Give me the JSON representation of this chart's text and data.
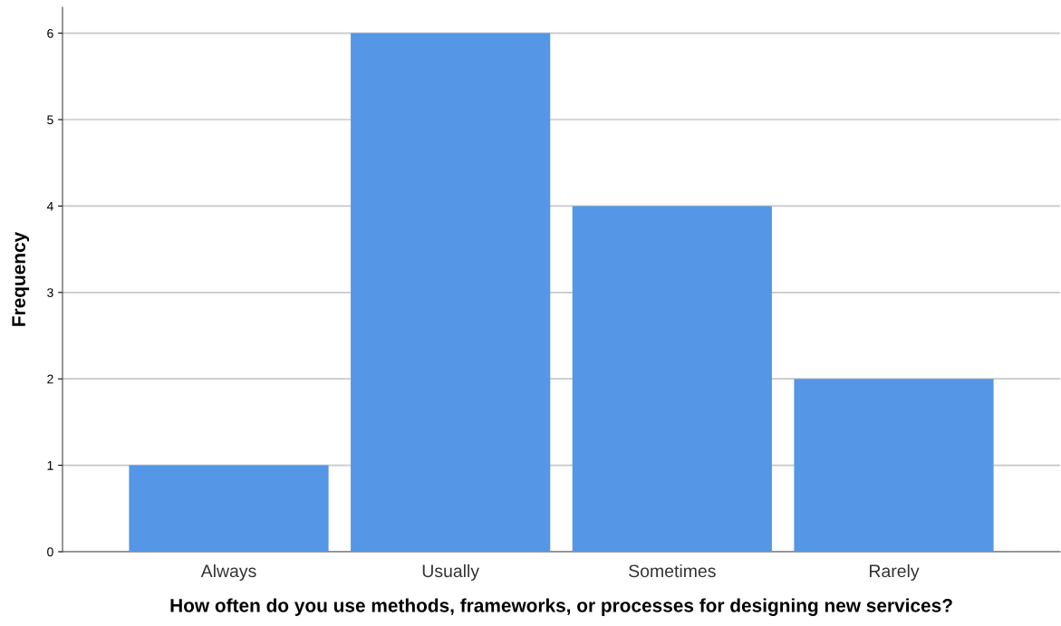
{
  "chart_data": {
    "type": "bar",
    "xlabel": "How often do you use methods, frameworks, or processes for designing new services?",
    "ylabel": "Frequency",
    "categories": [
      "Always",
      "Usually",
      "Sometimes",
      "Rarely"
    ],
    "values": [
      1,
      6,
      4,
      2
    ],
    "color": "#5596e6",
    "ylim": [
      0,
      6.3
    ],
    "yticks": [
      0,
      1,
      2,
      3,
      4,
      5,
      6
    ],
    "grid": "y"
  }
}
